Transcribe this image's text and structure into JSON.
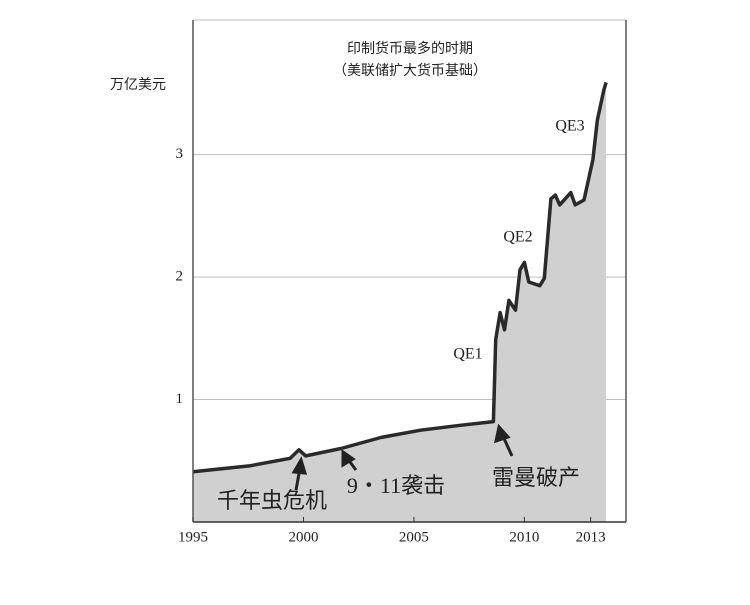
{
  "chart_data": {
    "type": "area",
    "title": "印制货币最多的时期",
    "subtitle": "（美联储扩大货币基础）",
    "y_label": "万亿美元",
    "x": [
      1995,
      1997.6,
      1999.4,
      1999.8,
      2000.1,
      2001.7,
      2003.5,
      2005.3,
      2007.1,
      2008.6,
      2008.7,
      2008.9,
      2009.1,
      2009.3,
      2009.6,
      2009.8,
      2010.0,
      2010.2,
      2010.7,
      2010.9,
      2011.2,
      2011.4,
      2011.6,
      2012.1,
      2012.3,
      2012.7,
      2013.1,
      2013.3,
      2013.6,
      2013.7
    ],
    "values": [
      0.41,
      0.46,
      0.52,
      0.59,
      0.54,
      0.6,
      0.69,
      0.75,
      0.79,
      0.82,
      1.49,
      1.71,
      1.57,
      1.81,
      1.73,
      2.06,
      2.12,
      1.96,
      1.93,
      1.99,
      2.64,
      2.67,
      2.59,
      2.69,
      2.59,
      2.63,
      2.96,
      3.28,
      3.53,
      3.59
    ],
    "color": "#2a2a2a",
    "fill": "#d0d0d0",
    "xlim": [
      1995,
      2014.6
    ],
    "xticks": [
      1995,
      2000,
      2005,
      2010,
      2013
    ],
    "ylim": [
      0,
      4.1
    ],
    "yticks": [
      1,
      2,
      3
    ],
    "grid": true,
    "annotations": [
      "QE1",
      "QE2",
      "QE3",
      "千年虫危机",
      "9・11袭击",
      "雷曼破产"
    ]
  }
}
